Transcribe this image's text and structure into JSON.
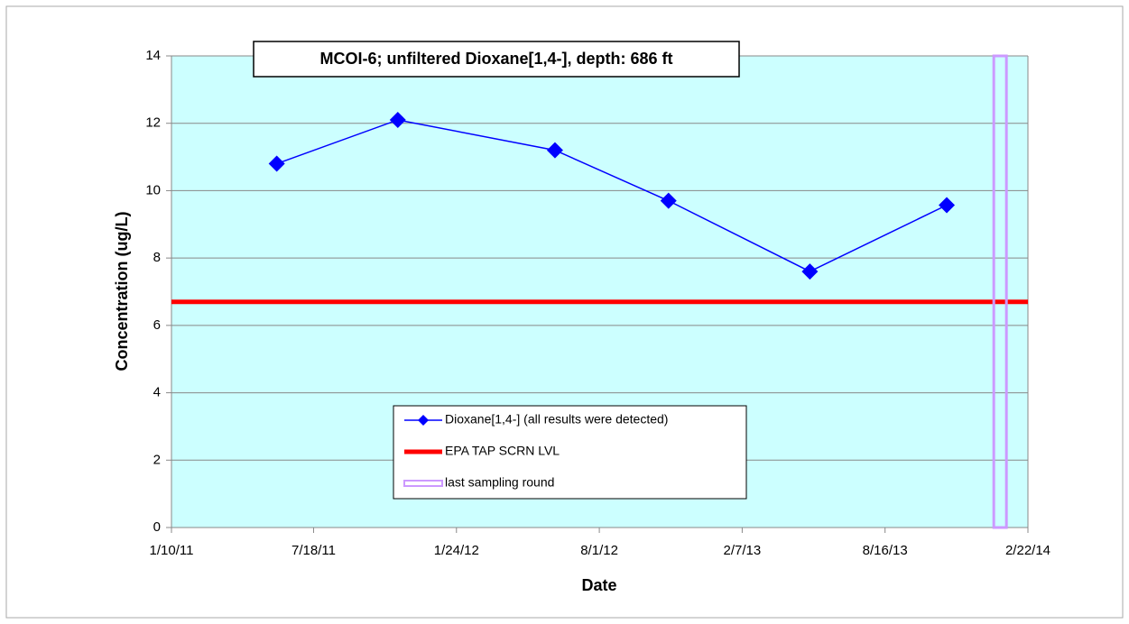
{
  "chart_data": {
    "type": "line",
    "title": "MCOI-6; unfiltered Dioxane[1,4-], depth: 686 ft",
    "x_label": "Date",
    "y_label": "Concentration (ug/L)",
    "x": [
      "2011-05-30",
      "2011-11-07",
      "2012-06-03",
      "2012-11-01",
      "2013-05-08",
      "2013-11-06"
    ],
    "series": [
      {
        "name": "Dioxane[1,4-] (all results were detected)",
        "color": "#0000ff",
        "values": [
          10.8,
          12.1,
          11.2,
          9.7,
          7.6,
          9.57
        ]
      }
    ],
    "reference_lines": [
      {
        "name": "EPA TAP SCRN LVL",
        "color": "#ff0000",
        "value": 6.7
      }
    ],
    "vertical_lines": [
      {
        "name": "last sampling round",
        "color": "#cc99ff",
        "x": "2014-01-16"
      }
    ],
    "xlim": [
      "2011-01-10",
      "2014-02-22"
    ],
    "xticks": [
      {
        "value": "2011-01-10",
        "label": "1/10/11"
      },
      {
        "value": "2011-07-18",
        "label": "7/18/11"
      },
      {
        "value": "2012-01-24",
        "label": "1/24/12"
      },
      {
        "value": "2012-08-01",
        "label": "8/1/12"
      },
      {
        "value": "2013-02-07",
        "label": "2/7/13"
      },
      {
        "value": "2013-08-16",
        "label": "8/16/13"
      },
      {
        "value": "2014-02-22",
        "label": "2/22/14"
      }
    ],
    "ylim": [
      0,
      14
    ],
    "yticks": [
      0,
      2,
      4,
      6,
      8,
      10,
      12,
      14
    ],
    "grid": true,
    "plot_background": "#ccffff"
  }
}
